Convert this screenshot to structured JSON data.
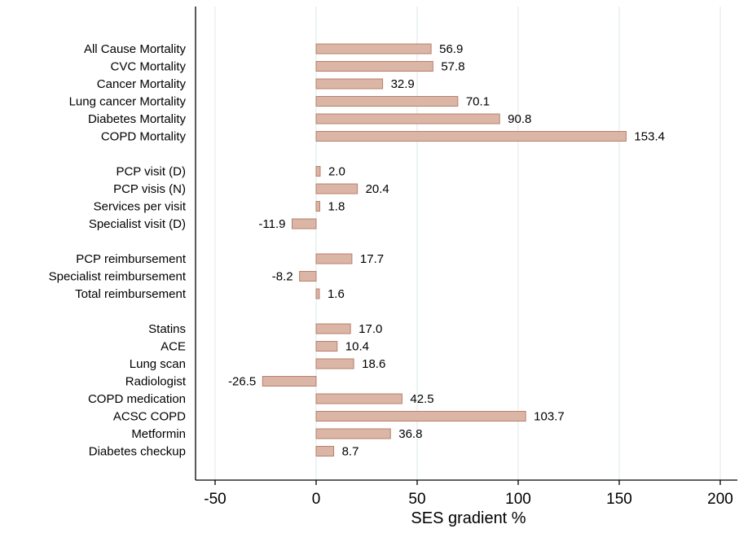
{
  "chart_data": {
    "type": "bar",
    "orientation": "horizontal",
    "title": "",
    "xlabel": "SES gradient %",
    "ylabel": "",
    "xlim": [
      -50,
      200
    ],
    "xticks": [
      -50,
      0,
      50,
      100,
      150,
      200
    ],
    "xtick_labels": [
      "-50",
      "0",
      "50",
      "100",
      "150",
      "200"
    ],
    "grid": "vertical gridlines at x ticks",
    "legend": "none",
    "colors": {
      "bar_fill": "#dbb5a5",
      "bar_stroke": "#b8806b",
      "grid": "#e3ebee"
    },
    "groups": [
      {
        "categories": [
          "All Cause Mortality",
          "CVC Mortality",
          "Cancer Mortality",
          "Lung cancer Mortality",
          "Diabetes Mortality",
          "COPD Mortality"
        ],
        "values": [
          56.9,
          57.8,
          32.9,
          70.1,
          90.8,
          153.4
        ],
        "labels": [
          "56.9",
          "57.8",
          "32.9",
          "70.1",
          "90.8",
          "153.4"
        ]
      },
      {
        "categories": [
          "PCP visit (D)",
          "PCP visis (N)",
          "Services per visit",
          "Specialist visit (D)"
        ],
        "values": [
          2.0,
          20.4,
          1.8,
          -11.9
        ],
        "labels": [
          "2.0",
          "20.4",
          "1.8",
          "-11.9"
        ]
      },
      {
        "categories": [
          "PCP reimbursement",
          "Specialist reimbursement",
          "Total reimbursement"
        ],
        "values": [
          17.7,
          -8.2,
          1.6
        ],
        "labels": [
          "17.7",
          "-8.2",
          "1.6"
        ]
      },
      {
        "categories": [
          "Statins",
          "ACE",
          "Lung scan",
          "Radiologist",
          "COPD medication",
          "ACSC COPD",
          "Metformin",
          "Diabetes checkup"
        ],
        "values": [
          17.0,
          10.4,
          18.6,
          -26.5,
          42.5,
          103.7,
          36.8,
          8.7
        ],
        "labels": [
          "17.0",
          "10.4",
          "18.6",
          "-26.5",
          "42.5",
          "103.7",
          "36.8",
          "8.7"
        ]
      }
    ]
  }
}
